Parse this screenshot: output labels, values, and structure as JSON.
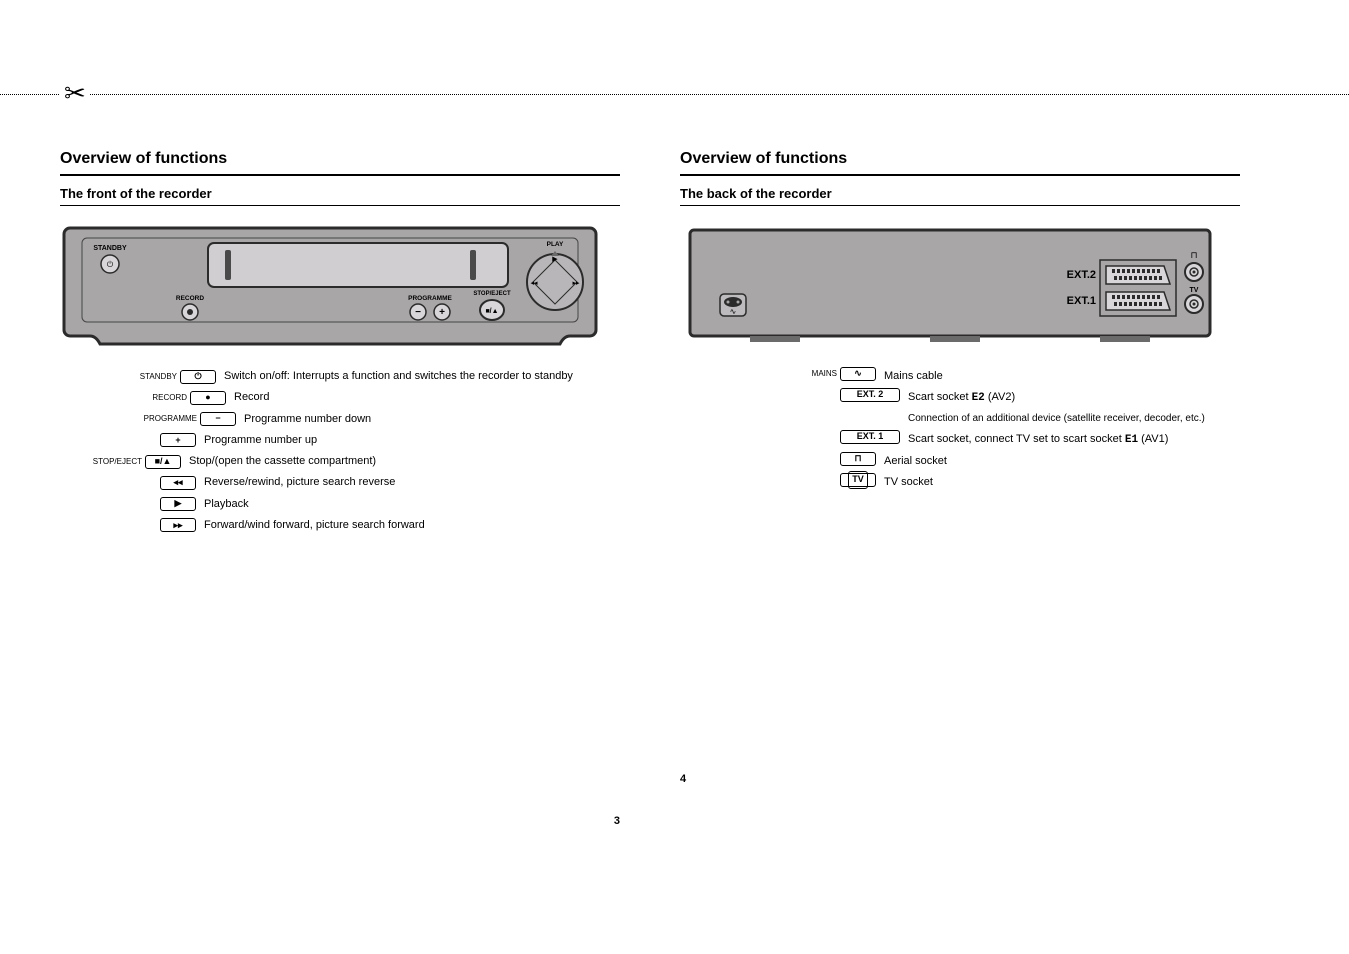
{
  "left": {
    "title": "Overview of functions",
    "subtitle": "The front of the recorder",
    "legend": [
      {
        "keyLabel": "STANDBY",
        "glyph": "⏻",
        "indent": 1,
        "desc": "Switch on/off: Interrupts a function and switches the recorder to standby"
      },
      {
        "keyLabel": "RECORD",
        "glyph": "●",
        "indent": 2,
        "desc": "Record"
      },
      {
        "keyLabel": "PROGRAMME",
        "glyph": "−",
        "indent": 3,
        "desc": "Programme number down"
      },
      {
        "keyLabel": "",
        "glyph": "+",
        "indent": 5,
        "desc": "Programme number up"
      },
      {
        "keyLabel": "STOP/EJECT",
        "glyph": "■/▲",
        "indent": 4,
        "desc": "Stop/(open the cassette compartment)"
      },
      {
        "keyLabel": "",
        "glyph": "◂◂",
        "indent": 5,
        "desc": "Reverse/rewind, picture search reverse"
      },
      {
        "keyLabel": "",
        "glyph": "▶",
        "indent": 5,
        "desc": "Playback"
      },
      {
        "keyLabel": "",
        "glyph": "▸▸",
        "indent": 5,
        "desc": "Forward/wind forward, picture search forward"
      }
    ],
    "pageNum": "3"
  },
  "right": {
    "title": "Overview of functions",
    "subtitle": "The back of the recorder",
    "legend": [
      {
        "keyLabel": "MAINS",
        "glyph": "∿",
        "iconOnly": true,
        "desc": "Mains cable"
      },
      {
        "keyLabel": "",
        "glyph": "EXT. 2",
        "wide": true,
        "desc": "Scart socket <span class='code'>E2</span> (AV2)<br><span class='small-note'>Connection of an additional device (satellite receiver, decoder, etc.)</span>"
      },
      {
        "keyLabel": "",
        "glyph": "EXT. 1",
        "wide": true,
        "desc": "Scart socket, connect TV set to scart socket <span class='code'>E1</span> (AV1)"
      },
      {
        "keyLabel": "",
        "glyph": "⊓",
        "iconOnly": true,
        "desc": "Aerial socket"
      },
      {
        "keyLabel": "",
        "glyph": "TV",
        "iconOnly": true,
        "circled": true,
        "desc": "TV socket"
      }
    ],
    "pageNum": "4"
  },
  "diagrams": {
    "front": {
      "bodyFill": "#a9a6a7",
      "darkBorder": "#2b2b2b",
      "textColor": "#000000",
      "slotFill": "#d0ced0",
      "labels": {
        "standby": "STANDBY",
        "record": "RECORD",
        "programme": "PROGRAMME",
        "stopEject": "STOP/EJECT",
        "play": "PLAY"
      }
    },
    "back": {
      "bodyFill": "#a9a6a7",
      "darkBorder": "#2b2b2b",
      "ext1": "EXT.1",
      "ext2": "EXT.2",
      "tv": "TV"
    }
  }
}
